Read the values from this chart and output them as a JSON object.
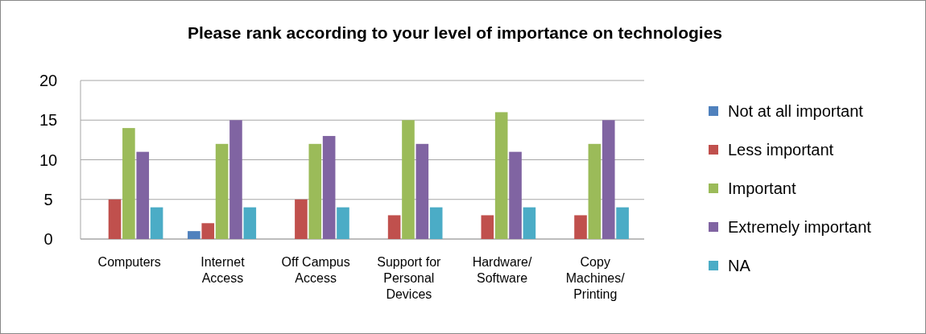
{
  "chart_data": {
    "type": "bar",
    "title": "Please rank according to your level of importance on technologies",
    "categories": [
      "Computers",
      "Internet Access",
      "Off Campus Access",
      "Support for Personal Devices",
      "Hardware/ Software",
      "Copy Machines/ Printing"
    ],
    "series": [
      {
        "name": "Not at all important",
        "color": "#4f81bd",
        "values": [
          0,
          1,
          0,
          0,
          0,
          0
        ]
      },
      {
        "name": "Less important",
        "color": "#c0504d",
        "values": [
          5,
          2,
          5,
          3,
          3,
          3
        ]
      },
      {
        "name": "Important",
        "color": "#9bbb59",
        "values": [
          14,
          12,
          12,
          15,
          16,
          12
        ]
      },
      {
        "name": "Extremely important",
        "color": "#8064a2",
        "values": [
          11,
          15,
          13,
          12,
          11,
          15
        ]
      },
      {
        "name": "NA",
        "color": "#4bacc6",
        "values": [
          4,
          4,
          4,
          4,
          4,
          4
        ]
      }
    ],
    "ylim": [
      0,
      20
    ],
    "yticks": [
      0,
      5,
      10,
      15,
      20
    ],
    "grid": "y",
    "legend": "right"
  }
}
